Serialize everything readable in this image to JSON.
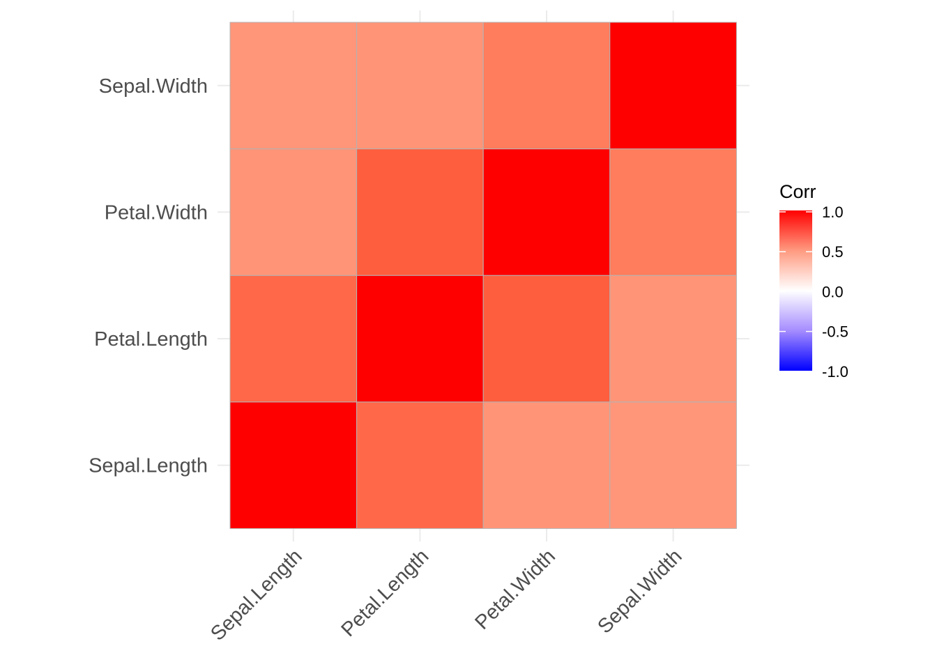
{
  "chart_data": {
    "type": "heatmap",
    "x_categories": [
      "Sepal.Length",
      "Petal.Length",
      "Petal.Width",
      "Sepal.Width"
    ],
    "y_categories": [
      "Sepal.Length",
      "Petal.Length",
      "Petal.Width",
      "Sepal.Width"
    ],
    "values": [
      [
        1.0,
        0.74,
        0.52,
        0.51
      ],
      [
        0.74,
        1.0,
        0.8,
        0.53
      ],
      [
        0.52,
        0.8,
        1.0,
        0.67
      ],
      [
        0.51,
        0.53,
        0.67,
        1.0
      ]
    ],
    "fills": [
      [
        "#FF0000",
        "#FF6849",
        "#FF9477",
        "#FF967A"
      ],
      [
        "#FF6849",
        "#FF0000",
        "#FF5E3E",
        "#FF9477"
      ],
      [
        "#FF9477",
        "#FF5E3E",
        "#FF0000",
        "#FF7D5C"
      ],
      [
        "#FF967A",
        "#FF9477",
        "#FF7D5C",
        "#FF0000"
      ]
    ],
    "legend": {
      "title": "Corr",
      "ticks": [
        "1.0",
        "0.5",
        "0.0",
        "-0.5",
        "-1.0"
      ],
      "range": [
        -1,
        1
      ],
      "low_color": "#0000FF",
      "mid_color": "#FFFFFF",
      "high_color": "#FF0000",
      "placement": "right"
    },
    "grid": true,
    "xlabel": "",
    "ylabel": ""
  }
}
